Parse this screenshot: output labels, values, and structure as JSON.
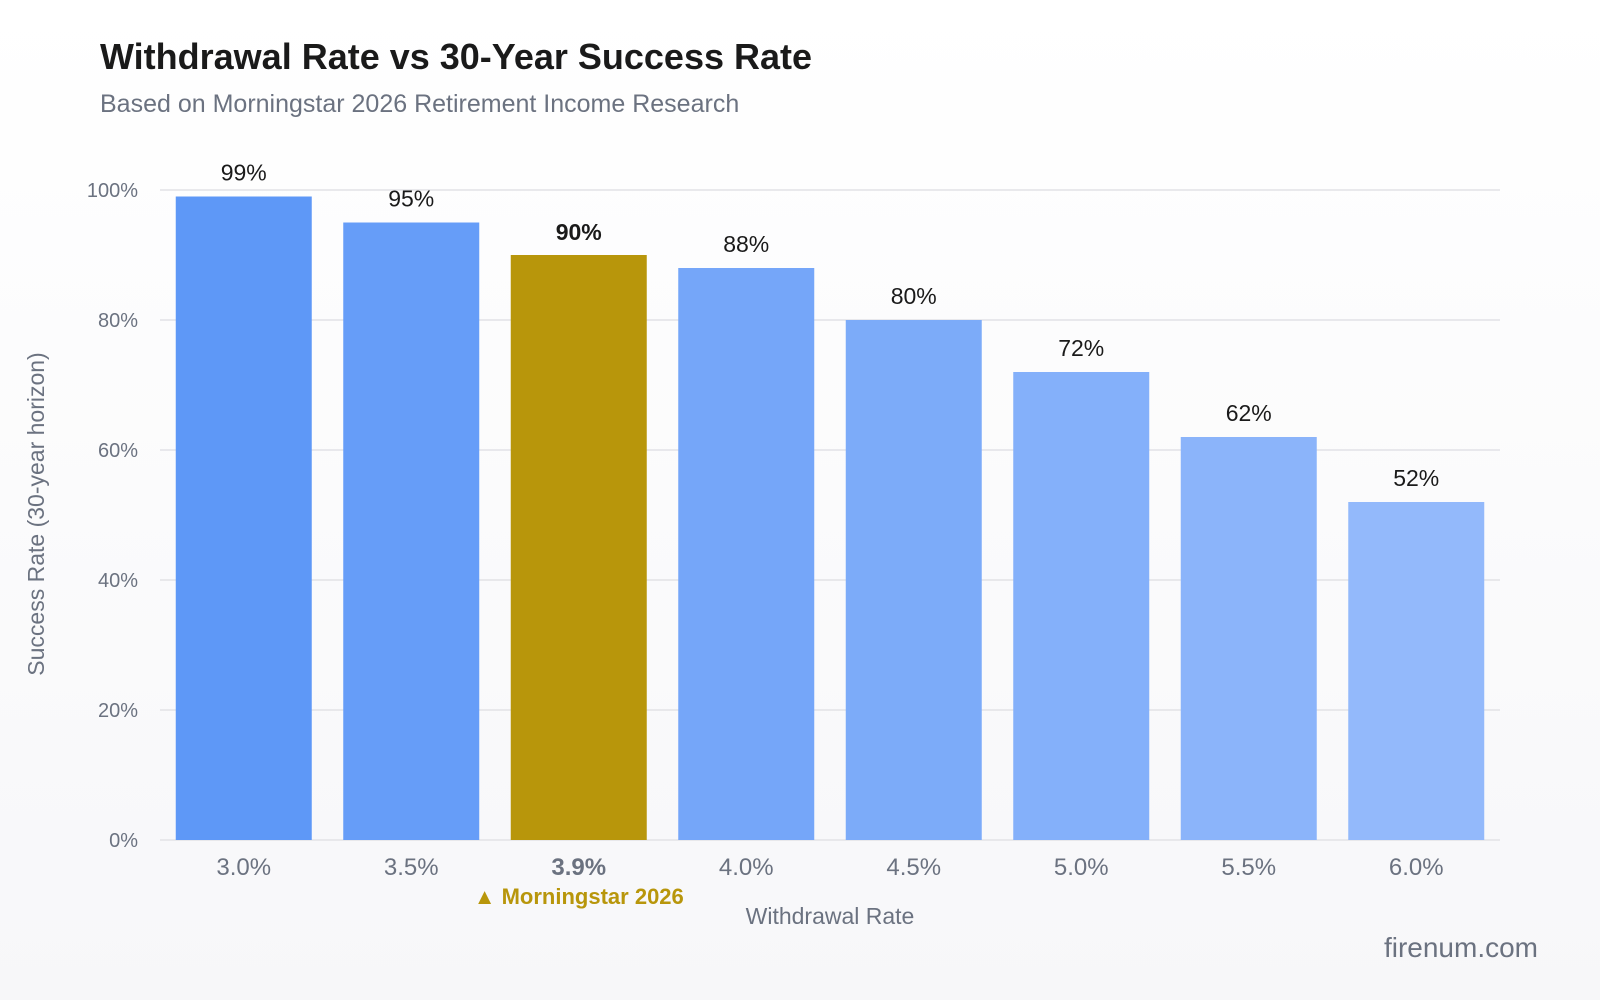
{
  "chart_data": {
    "type": "bar",
    "title": "Withdrawal Rate vs 30-Year Success Rate",
    "subtitle": "Based on Morningstar 2026 Retirement Income Research",
    "xlabel": "Withdrawal Rate",
    "ylabel": "Success Rate (30-year horizon)",
    "categories": [
      "3.0%",
      "3.5%",
      "3.9%",
      "4.0%",
      "4.5%",
      "5.0%",
      "5.5%",
      "6.0%"
    ],
    "values": [
      99,
      95,
      90,
      88,
      80,
      72,
      62,
      52
    ],
    "value_labels": [
      "99%",
      "95%",
      "90%",
      "88%",
      "80%",
      "72%",
      "62%",
      "52%"
    ],
    "ylim": [
      0,
      100
    ],
    "yticks": [
      0,
      20,
      40,
      60,
      80,
      100
    ],
    "ytick_labels": [
      "0%",
      "20%",
      "40%",
      "60%",
      "80%",
      "100%"
    ],
    "grid": true,
    "highlight_index": 2,
    "highlight_annotation": "▲ Morningstar 2026",
    "colors": {
      "bar_start": "#5e98f7",
      "bar_end": "#93b9fb",
      "highlight": "#b8960b",
      "grid": "#e2e2e6"
    }
  },
  "watermark": "firenum.com"
}
